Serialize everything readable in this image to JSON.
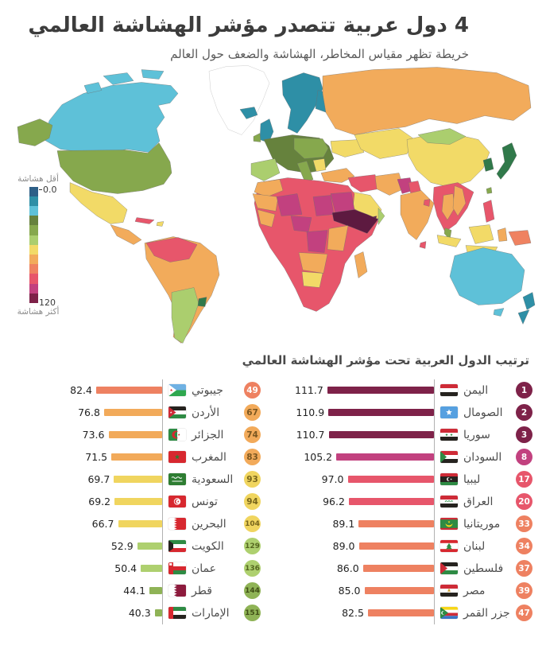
{
  "header": {
    "title": "4 دول عربية تتصدر مؤشر الهشاشة العالمي",
    "subtitle": "خريطة تظهر مقياس المخاطر، الهشاشة والضعف حول العالم"
  },
  "legend": {
    "less_label": "أقل هشاشة",
    "more_label": "أكثر هشاشة",
    "min_label": "0.0",
    "max_label": "120",
    "colors": [
      "#2d5f87",
      "#2e8fa6",
      "#5ec1d8",
      "#66823d",
      "#86a84d",
      "#abce6e",
      "#f2da67",
      "#f2ab5b",
      "#ef8261",
      "#e7566b",
      "#c2417f",
      "#7e2249"
    ]
  },
  "map": {
    "palette": {
      "nodata": "#ffffff",
      "cyan": "#5ec1d8",
      "teal": "#2e8fa6",
      "blue": "#2d5f87",
      "darkolive": "#66823d",
      "green": "#86a84d",
      "lightgreen": "#abce6e",
      "yellow": "#f2da67",
      "orange": "#f2ab5b",
      "salmon": "#ef8261",
      "red": "#e7566b",
      "magenta": "#c2417f",
      "maroon": "#7e2249",
      "darkmaroon": "#5d1a40",
      "darkgreen": "#30794a"
    }
  },
  "ranking": {
    "header": "ترتيب الدول العربية تحت مؤشر الهشاشة العالمي",
    "scale": {
      "axis_min": 35,
      "axis_max": 115
    },
    "right_column": [
      {
        "rank": 1,
        "name": "اليمن",
        "value": "111.7",
        "color": "#7e2249",
        "badge_text": "#ffffff",
        "flag": "yemen"
      },
      {
        "rank": 2,
        "name": "الصومال",
        "value": "110.9",
        "color": "#7e2249",
        "badge_text": "#ffffff",
        "flag": "somalia"
      },
      {
        "rank": 3,
        "name": "سوريا",
        "value": "110.7",
        "color": "#7e2249",
        "badge_text": "#ffffff",
        "flag": "syria"
      },
      {
        "rank": 8,
        "name": "السودان",
        "value": "105.2",
        "color": "#c2417f",
        "badge_text": "#ffffff",
        "flag": "sudan"
      },
      {
        "rank": 17,
        "name": "ليبيا",
        "value": "97.0",
        "color": "#e7566b",
        "badge_text": "#ffffff",
        "flag": "libya"
      },
      {
        "rank": 20,
        "name": "العراق",
        "value": "96.2",
        "color": "#e7566b",
        "badge_text": "#ffffff",
        "flag": "iraq"
      },
      {
        "rank": 33,
        "name": "موريتانيا",
        "value": "89.1",
        "color": "#ee8161",
        "badge_text": "#ffffff",
        "flag": "mauritania"
      },
      {
        "rank": 34,
        "name": "لبنان",
        "value": "89.0",
        "color": "#ee8161",
        "badge_text": "#ffffff",
        "flag": "lebanon"
      },
      {
        "rank": 37,
        "name": "فلسطين",
        "value": "86.0",
        "color": "#ee8161",
        "badge_text": "#ffffff",
        "flag": "palestine"
      },
      {
        "rank": 39,
        "name": "مصر",
        "value": "85.0",
        "color": "#ee8161",
        "badge_text": "#ffffff",
        "flag": "egypt"
      },
      {
        "rank": 47,
        "name": "جزر القمر",
        "value": "82.5",
        "color": "#ee8161",
        "badge_text": "#ffffff",
        "flag": "comoros"
      }
    ],
    "left_column": [
      {
        "rank": 49,
        "name": "جيبوتي",
        "value": "82.4",
        "color": "#ee8161",
        "badge_text": "#ffffff",
        "flag": "djibouti"
      },
      {
        "rank": 67,
        "name": "الأردن",
        "value": "76.8",
        "color": "#f2aa5a",
        "badge_text": "#7a5620",
        "flag": "jordan"
      },
      {
        "rank": 74,
        "name": "الجزائر",
        "value": "73.6",
        "color": "#f2aa5a",
        "badge_text": "#7a5620",
        "flag": "algeria"
      },
      {
        "rank": 83,
        "name": "المغرب",
        "value": "71.5",
        "color": "#f2aa5a",
        "badge_text": "#7a5620",
        "flag": "morocco"
      },
      {
        "rank": 93,
        "name": "السعودية",
        "value": "69.7",
        "color": "#f0d55f",
        "badge_text": "#77651c",
        "flag": "saudi_arabia"
      },
      {
        "rank": 94,
        "name": "تونس",
        "value": "69.2",
        "color": "#f0d55f",
        "badge_text": "#77651c",
        "flag": "tunisia"
      },
      {
        "rank": 104,
        "name": "البحرين",
        "value": "66.7",
        "color": "#f0d55f",
        "badge_text": "#77651c",
        "flag": "bahrain"
      },
      {
        "rank": 129,
        "name": "الكويت",
        "value": "52.9",
        "color": "#aed06f",
        "badge_text": "#55661f",
        "flag": "kuwait"
      },
      {
        "rank": 136,
        "name": "عمان",
        "value": "50.4",
        "color": "#aed06f",
        "badge_text": "#55661f",
        "flag": "oman"
      },
      {
        "rank": 144,
        "name": "قطر",
        "value": "44.1",
        "color": "#8fb356",
        "badge_text": "#404f16",
        "flag": "qatar"
      },
      {
        "rank": 151,
        "name": "الإمارات",
        "value": "40.3",
        "color": "#8fb356",
        "badge_text": "#404f16",
        "flag": "uae"
      }
    ]
  },
  "chart_data": [
    {
      "type": "heatmap",
      "subtype": "world-choropleth",
      "title": "خريطة تظهر مقياس المخاطر، الهشاشة والضعف حول العالم",
      "scale": {
        "min": 0.0,
        "max": 120,
        "min_side_label": "أقل هشاشة",
        "max_side_label": "أكثر هشاشة"
      },
      "legend_colors": [
        "#2d5f87",
        "#2e8fa6",
        "#5ec1d8",
        "#66823d",
        "#86a84d",
        "#abce6e",
        "#f2da67",
        "#f2ab5b",
        "#ef8261",
        "#e7566b",
        "#c2417f",
        "#7e2249"
      ],
      "legend_position": "left"
    },
    {
      "type": "bar",
      "orientation": "horizontal",
      "title": "ترتيب الدول العربية تحت مؤشر الهشاشة العالمي",
      "categories": [
        "اليمن",
        "الصومال",
        "سوريا",
        "السودان",
        "ليبيا",
        "العراق",
        "موريتانيا",
        "لبنان",
        "فلسطين",
        "مصر",
        "جزر القمر",
        "جيبوتي",
        "الأردن",
        "الجزائر",
        "المغرب",
        "السعودية",
        "تونس",
        "البحرين",
        "الكويت",
        "عمان",
        "قطر",
        "الإمارات"
      ],
      "values": [
        111.7,
        110.9,
        110.7,
        105.2,
        97.0,
        96.2,
        89.1,
        89.0,
        86.0,
        85.0,
        82.5,
        82.4,
        76.8,
        73.6,
        71.5,
        69.7,
        69.2,
        66.7,
        52.9,
        50.4,
        44.1,
        40.3
      ],
      "ranks": [
        1,
        2,
        3,
        8,
        17,
        20,
        33,
        34,
        37,
        39,
        47,
        49,
        67,
        74,
        83,
        93,
        94,
        104,
        129,
        136,
        144,
        151
      ],
      "xlim": [
        35,
        115
      ],
      "grid": false,
      "legend": "none"
    }
  ]
}
